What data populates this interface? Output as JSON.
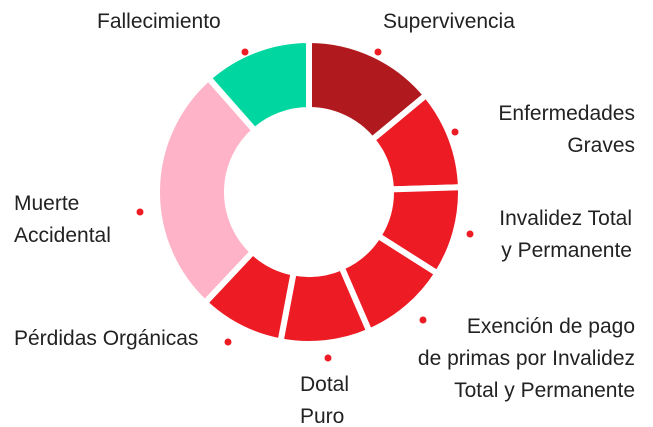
{
  "chart_data": {
    "type": "donut",
    "categories": [
      "Supervivencia",
      "Enfermedades\nGraves",
      "Invalidez Total\ny Permanente",
      "Exención de pago\nde primas por Invalidez\nTotal y Permanente",
      "Dotal\nPuro",
      "Pérdidas Orgánicas",
      "Muerte\nAccidental",
      "Fallecimiento"
    ],
    "values": [
      14,
      10.5,
      9.5,
      9.5,
      9.5,
      9,
      26.5,
      11.5
    ],
    "colors": [
      "#b0191e",
      "#ed1c24",
      "#ed1c24",
      "#ed1c24",
      "#ed1c24",
      "#ed1c24",
      "#ffb3c8",
      "#00d6a0"
    ],
    "dot_color": "#ed1c24"
  }
}
